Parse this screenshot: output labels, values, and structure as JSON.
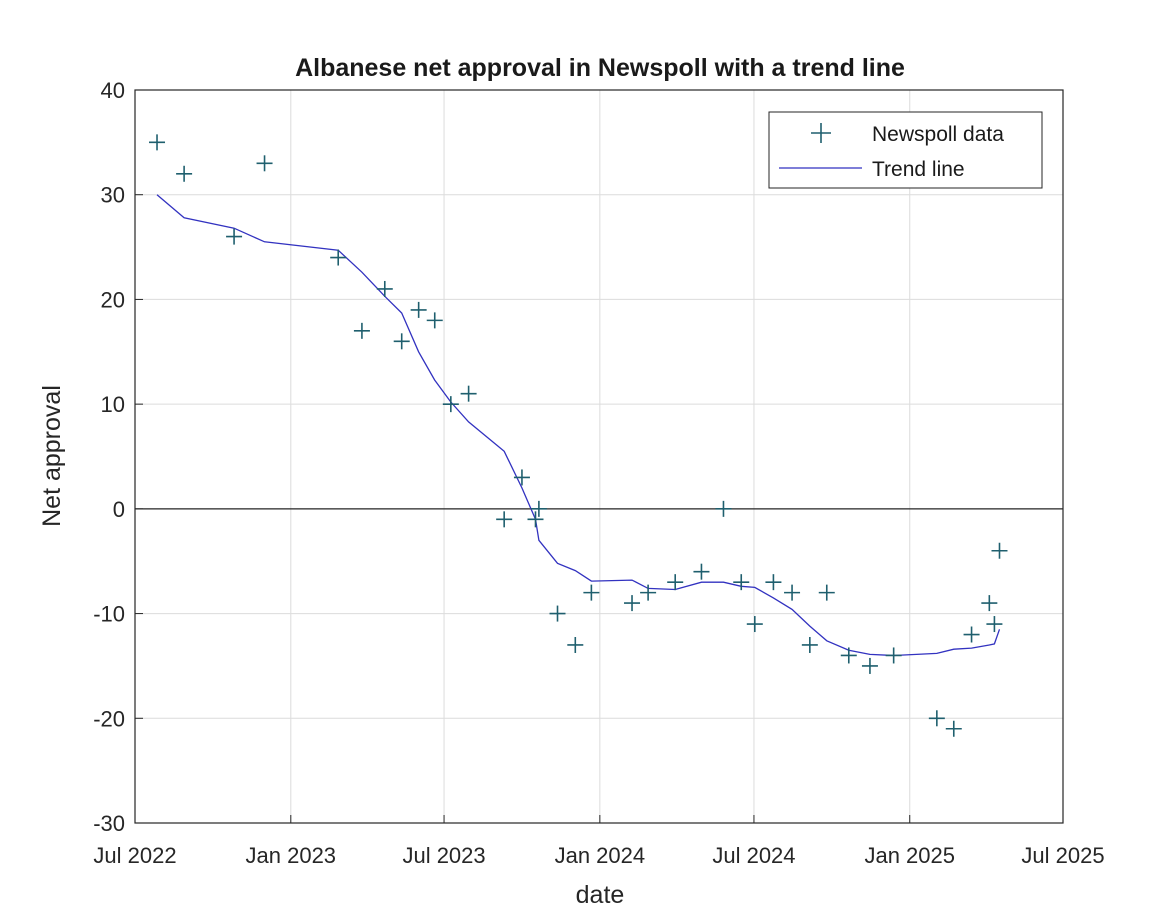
{
  "chart_data": {
    "type": "scatter",
    "title": "Albanese net approval in Newspoll with a trend line",
    "xlabel": "date",
    "ylabel": "Net approval",
    "xlim": [
      "2022-07-01",
      "2025-07-01"
    ],
    "ylim": [
      -30,
      40
    ],
    "grid": true,
    "legend_position": "top-right",
    "x_ticks": [
      {
        "date": "2022-07-01",
        "label": "Jul 2022"
      },
      {
        "date": "2023-01-01",
        "label": "Jan 2023"
      },
      {
        "date": "2023-07-01",
        "label": "Jul 2023"
      },
      {
        "date": "2024-01-01",
        "label": "Jan 2024"
      },
      {
        "date": "2024-07-01",
        "label": "Jul 2024"
      },
      {
        "date": "2025-01-01",
        "label": "Jan 2025"
      },
      {
        "date": "2025-07-01",
        "label": "Jul 2025"
      }
    ],
    "y_ticks": [
      {
        "value": 40,
        "label": "40"
      },
      {
        "value": 30,
        "label": "30"
      },
      {
        "value": 20,
        "label": "20"
      },
      {
        "value": 10,
        "label": "10"
      },
      {
        "value": 0,
        "label": "0"
      },
      {
        "value": -10,
        "label": "-10"
      },
      {
        "value": -20,
        "label": "-20"
      },
      {
        "value": -30,
        "label": "-30"
      }
    ],
    "series": [
      {
        "name": "Newspoll data",
        "kind": "markers",
        "marker": "+",
        "color": "#1f5f6e",
        "points": [
          {
            "date": "2022-07-27",
            "y": 35
          },
          {
            "date": "2022-08-28",
            "y": 32
          },
          {
            "date": "2022-10-26",
            "y": 26
          },
          {
            "date": "2022-12-01",
            "y": 33
          },
          {
            "date": "2023-02-26",
            "y": 24
          },
          {
            "date": "2023-03-26",
            "y": 17
          },
          {
            "date": "2023-04-22",
            "y": 21
          },
          {
            "date": "2023-05-12",
            "y": 16
          },
          {
            "date": "2023-06-01",
            "y": 19
          },
          {
            "date": "2023-06-20",
            "y": 18
          },
          {
            "date": "2023-07-09",
            "y": 10
          },
          {
            "date": "2023-07-30",
            "y": 11
          },
          {
            "date": "2023-09-10",
            "y": -1
          },
          {
            "date": "2023-10-01",
            "y": 3
          },
          {
            "date": "2023-10-17",
            "y": -1
          },
          {
            "date": "2023-10-21",
            "y": 0
          },
          {
            "date": "2023-11-12",
            "y": -10
          },
          {
            "date": "2023-12-03",
            "y": -13
          },
          {
            "date": "2023-12-22",
            "y": -8
          },
          {
            "date": "2024-02-08",
            "y": -9
          },
          {
            "date": "2024-02-27",
            "y": -8
          },
          {
            "date": "2024-03-30",
            "y": -7
          },
          {
            "date": "2024-04-30",
            "y": -6
          },
          {
            "date": "2024-05-26",
            "y": 0
          },
          {
            "date": "2024-06-16",
            "y": -7
          },
          {
            "date": "2024-07-02",
            "y": -11
          },
          {
            "date": "2024-07-24",
            "y": -7
          },
          {
            "date": "2024-08-15",
            "y": -8
          },
          {
            "date": "2024-09-05",
            "y": -13
          },
          {
            "date": "2024-09-25",
            "y": -8
          },
          {
            "date": "2024-10-21",
            "y": -14
          },
          {
            "date": "2024-11-15",
            "y": -15
          },
          {
            "date": "2024-12-13",
            "y": -14
          },
          {
            "date": "2025-02-02",
            "y": -20
          },
          {
            "date": "2025-02-22",
            "y": -21
          },
          {
            "date": "2025-03-15",
            "y": -12
          },
          {
            "date": "2025-04-05",
            "y": -9
          },
          {
            "date": "2025-04-11",
            "y": -11
          },
          {
            "date": "2025-04-17",
            "y": -4
          }
        ]
      },
      {
        "name": "Trend line",
        "kind": "line",
        "color": "#3232c0",
        "points": [
          {
            "date": "2022-07-27",
            "y": 30
          },
          {
            "date": "2022-08-28",
            "y": 27.8
          },
          {
            "date": "2022-10-26",
            "y": 26.8
          },
          {
            "date": "2022-12-01",
            "y": 25.5
          },
          {
            "date": "2023-02-26",
            "y": 24.7
          },
          {
            "date": "2023-03-26",
            "y": 22.6
          },
          {
            "date": "2023-04-22",
            "y": 20.3
          },
          {
            "date": "2023-05-12",
            "y": 18.7
          },
          {
            "date": "2023-06-01",
            "y": 15
          },
          {
            "date": "2023-06-20",
            "y": 12.3
          },
          {
            "date": "2023-07-09",
            "y": 10.2
          },
          {
            "date": "2023-07-30",
            "y": 8.3
          },
          {
            "date": "2023-09-10",
            "y": 5.5
          },
          {
            "date": "2023-10-01",
            "y": 2
          },
          {
            "date": "2023-10-17",
            "y": -1
          },
          {
            "date": "2023-10-21",
            "y": -3
          },
          {
            "date": "2023-11-12",
            "y": -5.2
          },
          {
            "date": "2023-12-03",
            "y": -5.9
          },
          {
            "date": "2023-12-22",
            "y": -6.9
          },
          {
            "date": "2024-02-08",
            "y": -6.8
          },
          {
            "date": "2024-02-27",
            "y": -7.6
          },
          {
            "date": "2024-03-30",
            "y": -7.7
          },
          {
            "date": "2024-04-30",
            "y": -7
          },
          {
            "date": "2024-05-26",
            "y": -7
          },
          {
            "date": "2024-06-16",
            "y": -7.4
          },
          {
            "date": "2024-07-02",
            "y": -7.5
          },
          {
            "date": "2024-07-24",
            "y": -8.5
          },
          {
            "date": "2024-08-15",
            "y": -9.6
          },
          {
            "date": "2024-09-05",
            "y": -11.2
          },
          {
            "date": "2024-09-25",
            "y": -12.6
          },
          {
            "date": "2024-10-21",
            "y": -13.5
          },
          {
            "date": "2024-11-15",
            "y": -13.9
          },
          {
            "date": "2024-12-13",
            "y": -14
          },
          {
            "date": "2025-02-02",
            "y": -13.8
          },
          {
            "date": "2025-02-22",
            "y": -13.4
          },
          {
            "date": "2025-03-15",
            "y": -13.3
          },
          {
            "date": "2025-04-05",
            "y": -13
          },
          {
            "date": "2025-04-11",
            "y": -12.9
          },
          {
            "date": "2025-04-17",
            "y": -11.5
          }
        ]
      }
    ]
  }
}
